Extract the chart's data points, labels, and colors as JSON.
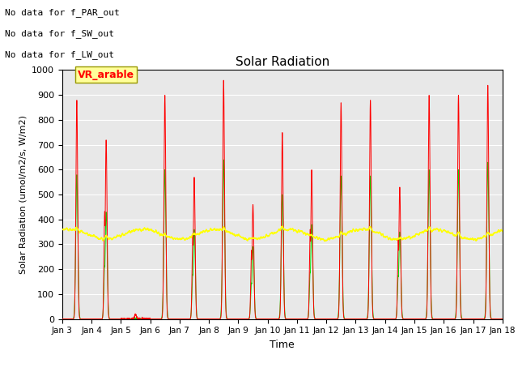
{
  "title": "Solar Radiation",
  "xlabel": "Time",
  "ylabel": "Solar Radiation (umol/m2/s, W/m2)",
  "ylim": [
    0,
    1000
  ],
  "xlim_days": [
    3,
    18
  ],
  "text_annotations": [
    "No data for f_PAR_out",
    "No data for f_SW_out",
    "No data for f_LW_out"
  ],
  "legend_label": "VR_arable",
  "series_colors": {
    "PAR_in": "#ff0000",
    "SW_in": "#00dd00",
    "LW_in": "#ffff00"
  },
  "background_color": "#e8e8e8",
  "grid_color": "#ffffff",
  "lw_baseline": 340,
  "random_seed": 42,
  "figsize": [
    6.4,
    4.8
  ],
  "dpi": 100
}
